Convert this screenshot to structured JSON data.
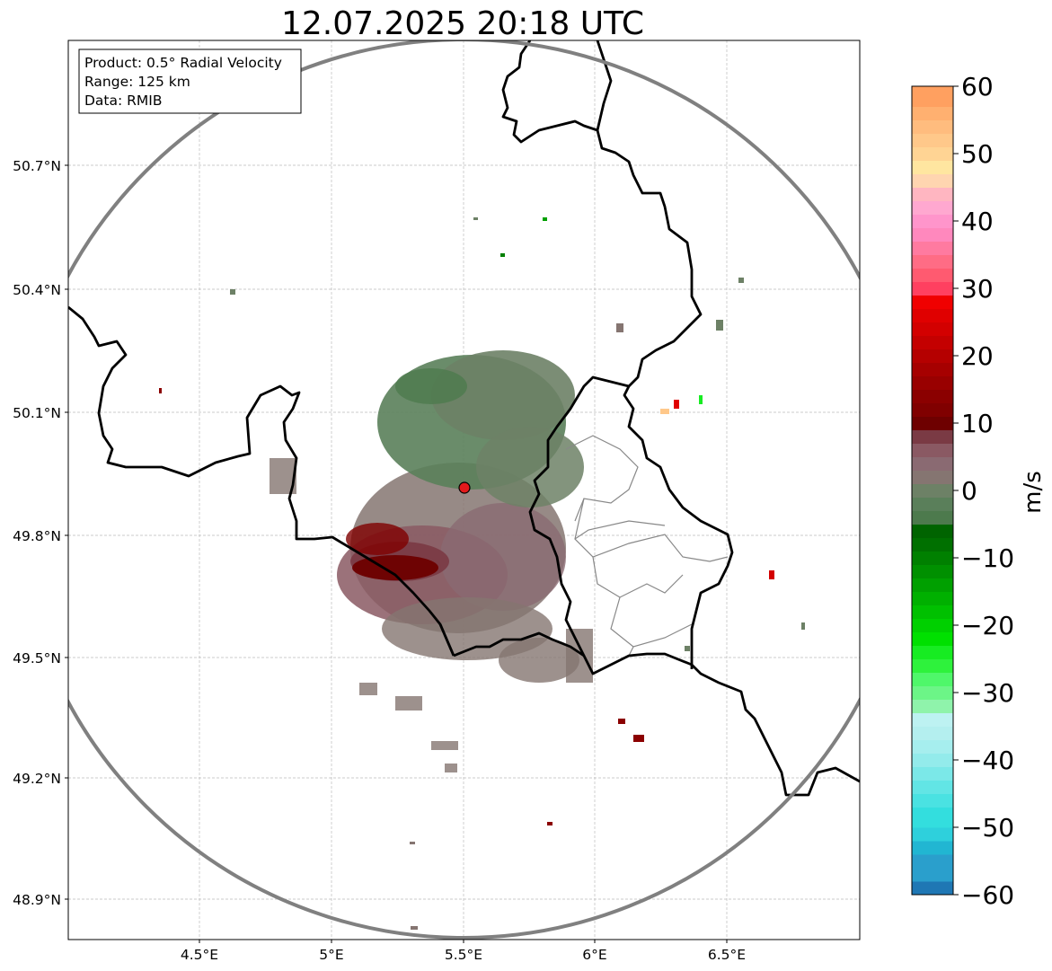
{
  "title": "12.07.2025 20:18 UTC",
  "info_box": {
    "product": "Product: 0.5° Radial Velocity",
    "range": "Range: 125 km",
    "source": "Data: RMIB"
  },
  "axes": {
    "x_ticks": [
      "4.5°E",
      "5°E",
      "5.5°E",
      "6°E",
      "6.5°E"
    ],
    "y_ticks": [
      "50.7°N",
      "50.4°N",
      "50.1°N",
      "49.8°N",
      "49.5°N",
      "49.2°N",
      "48.9°N"
    ]
  },
  "colorbar": {
    "label": "m/s",
    "ticks": [
      "60",
      "50",
      "40",
      "30",
      "20",
      "10",
      "0",
      "−10",
      "−20",
      "−30",
      "−40",
      "−50",
      "−60"
    ],
    "range": [
      -60,
      60
    ],
    "bins": [
      {
        "from": -60,
        "to": -58,
        "color": "#1f77b4"
      },
      {
        "from": -58,
        "to": -54,
        "color": "#2a9fcc"
      },
      {
        "from": -54,
        "to": -52,
        "color": "#21b6d2"
      },
      {
        "from": -52,
        "to": -50,
        "color": "#2ed0dc"
      },
      {
        "from": -50,
        "to": -47,
        "color": "#33dede"
      },
      {
        "from": -47,
        "to": -45,
        "color": "#4ae2e2"
      },
      {
        "from": -45,
        "to": -43,
        "color": "#62e5e5"
      },
      {
        "from": -43,
        "to": -41,
        "color": "#7be8e8"
      },
      {
        "from": -41,
        "to": -39,
        "color": "#93ebeb"
      },
      {
        "from": -39,
        "to": -37,
        "color": "#a6eeee"
      },
      {
        "from": -37,
        "to": -35,
        "color": "#b4efef"
      },
      {
        "from": -35,
        "to": -33,
        "color": "#bdf2f2"
      },
      {
        "from": -33,
        "to": -31,
        "color": "#8ff3ab"
      },
      {
        "from": -31,
        "to": -29,
        "color": "#6cf587"
      },
      {
        "from": -29,
        "to": -27,
        "color": "#4ff76a"
      },
      {
        "from": -27,
        "to": -25,
        "color": "#2ef23c"
      },
      {
        "from": -25,
        "to": -23,
        "color": "#17ec22"
      },
      {
        "from": -23,
        "to": -21,
        "color": "#00e000"
      },
      {
        "from": -21,
        "to": -19,
        "color": "#00d000"
      },
      {
        "from": -19,
        "to": -17,
        "color": "#00c000"
      },
      {
        "from": -17,
        "to": -15,
        "color": "#00b000"
      },
      {
        "from": -15,
        "to": -13,
        "color": "#00a000"
      },
      {
        "from": -13,
        "to": -11,
        "color": "#009000"
      },
      {
        "from": -11,
        "to": -9,
        "color": "#008000"
      },
      {
        "from": -9,
        "to": -7,
        "color": "#007000"
      },
      {
        "from": -7,
        "to": -5,
        "color": "#006400"
      },
      {
        "from": -5,
        "to": -3,
        "color": "#4d7a4d"
      },
      {
        "from": -3,
        "to": -1,
        "color": "#5a7f5a"
      },
      {
        "from": -1,
        "to": 1,
        "color": "#6d8166"
      },
      {
        "from": 1,
        "to": 3,
        "color": "#857571"
      },
      {
        "from": 3,
        "to": 5,
        "color": "#8a6a72"
      },
      {
        "from": 5,
        "to": 7,
        "color": "#8a5963"
      },
      {
        "from": 7,
        "to": 9,
        "color": "#7a3a44"
      },
      {
        "from": 9,
        "to": 11,
        "color": "#6e0000"
      },
      {
        "from": 11,
        "to": 13,
        "color": "#800000"
      },
      {
        "from": 13,
        "to": 15,
        "color": "#8b0000"
      },
      {
        "from": 15,
        "to": 17,
        "color": "#990000"
      },
      {
        "from": 17,
        "to": 19,
        "color": "#a60000"
      },
      {
        "from": 19,
        "to": 21,
        "color": "#b50000"
      },
      {
        "from": 21,
        "to": 23,
        "color": "#c40000"
      },
      {
        "from": 23,
        "to": 25,
        "color": "#d30000"
      },
      {
        "from": 25,
        "to": 27,
        "color": "#e00000"
      },
      {
        "from": 27,
        "to": 29,
        "color": "#f00000"
      },
      {
        "from": 29,
        "to": 31,
        "color": "#ff4060"
      },
      {
        "from": 31,
        "to": 33,
        "color": "#ff5a70"
      },
      {
        "from": 33,
        "to": 35,
        "color": "#ff6c85"
      },
      {
        "from": 35,
        "to": 37,
        "color": "#ff7aa0"
      },
      {
        "from": 37,
        "to": 39,
        "color": "#ff88bd"
      },
      {
        "from": 39,
        "to": 41,
        "color": "#ff95cb"
      },
      {
        "from": 41,
        "to": 43,
        "color": "#ffa8d0"
      },
      {
        "from": 43,
        "to": 45,
        "color": "#ffb6c1"
      },
      {
        "from": 45,
        "to": 47,
        "color": "#ffd5b0"
      },
      {
        "from": 47,
        "to": 49,
        "color": "#ffe6a0"
      },
      {
        "from": 49,
        "to": 51,
        "color": "#ffd494"
      },
      {
        "from": 51,
        "to": 53,
        "color": "#ffc88a"
      },
      {
        "from": 53,
        "to": 55,
        "color": "#ffbc7e"
      },
      {
        "from": 55,
        "to": 57,
        "color": "#ffb070"
      },
      {
        "from": 57,
        "to": 60,
        "color": "#ffa060"
      }
    ]
  },
  "colors": {
    "range_ring": "#808080",
    "border": "#000000",
    "admin_border": "#888888",
    "radar_site": "#e31a1c",
    "grid": "#bbbbbb"
  }
}
